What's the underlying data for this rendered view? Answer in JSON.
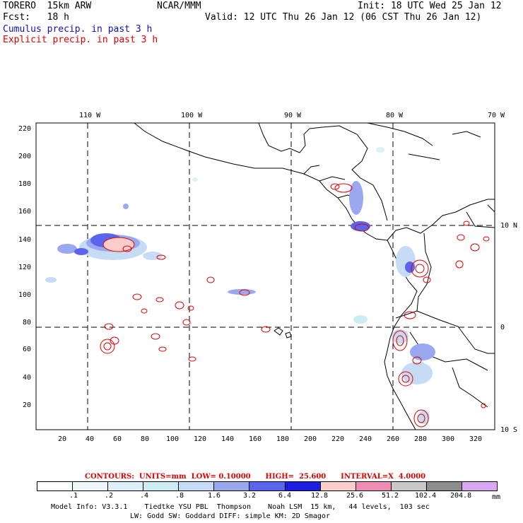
{
  "header": {
    "model": "TORERO  15km ARW",
    "center": "NCAR/MMM",
    "init": "Init: 18 UTC Wed 25 Jan 12",
    "fcst": "Fcst:   18 h",
    "valid": "Valid: 12 UTC Thu 26 Jan 12 (06 CST Thu 26 Jan 12)",
    "line_cumulus": "Cumulus precip. in past 3 h",
    "line_explicit": "Explicit precip. in past 3 h"
  },
  "map": {
    "lon_labels": [
      "110 W",
      "100 W",
      "90 W",
      "80 W",
      "70 W"
    ],
    "lat_labels": [
      "10 N",
      "0",
      "10 S"
    ],
    "y_ticks": [
      "220",
      "200",
      "180",
      "160",
      "140",
      "120",
      "100",
      "80",
      "60",
      "40",
      "20"
    ],
    "x_ticks": [
      "20",
      "40",
      "60",
      "80",
      "100",
      "120",
      "140",
      "160",
      "180",
      "200",
      "220",
      "240",
      "260",
      "280",
      "300",
      "320"
    ]
  },
  "contours": {
    "label": "CONTOURS:  UNITS=mm  LOW= 0.10000      HIGH=  25.600      INTERVAL=X  4.0000"
  },
  "legend": {
    "values": [
      ".1",
      ".2",
      ".4",
      ".8",
      "1.6",
      "3.2",
      "6.4",
      "12.8",
      "25.6",
      "51.2",
      "102.4",
      "204.8"
    ],
    "unit": "mm",
    "colors": [
      "#ffffff",
      "#eef7fb",
      "#ddf0f8",
      "#ccecf4",
      "#c6dcf4",
      "#9aa8f0",
      "#5a64ec",
      "#1e1ee0",
      "#ffcccc",
      "#f08cb4",
      "#c8c8c8",
      "#8c8c8c",
      "#d8a8f0"
    ]
  },
  "footer": {
    "line1": "Model Info: V3.3.1    Tiedtke YSU PBL  Thompson    Noah LSM  15 km,   44 levels,  103 sec",
    "line2": "LW: Godd SW: Goddard DIFF: simple KM: 2D Smagor"
  }
}
